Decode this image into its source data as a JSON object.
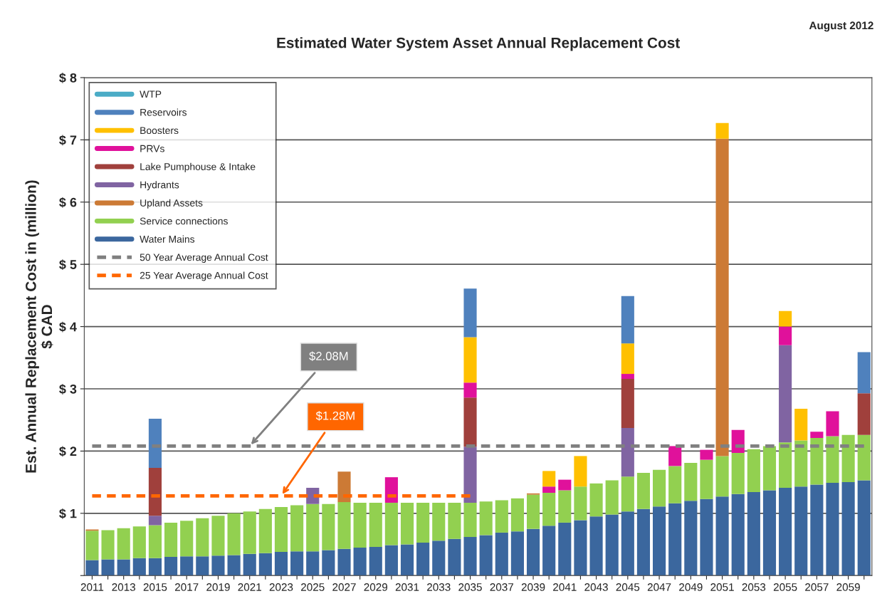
{
  "chart_data": {
    "type": "bar",
    "stacked": true,
    "title": "Estimated Water System Asset Annual Replacement Cost",
    "ylabel": "Est. Annual Replacement Cost in (million)\n$ CAD",
    "categories": [
      "2011",
      null,
      "2013",
      null,
      "2015",
      null,
      "2017",
      null,
      "2019",
      null,
      "2021",
      null,
      "2023",
      null,
      "2025",
      null,
      "2027",
      null,
      "2029",
      null,
      "2031",
      null,
      "2033",
      null,
      "2035",
      null,
      "2037",
      null,
      "2039",
      null,
      "2041",
      null,
      "2043",
      null,
      "2045",
      null,
      "2047",
      null,
      "2049",
      null,
      "2051",
      null,
      "2053",
      null,
      "2055",
      null,
      "2057",
      null,
      "2059",
      null
    ],
    "series": [
      {
        "name": "Water Mains",
        "color": "#3b679e",
        "values": [
          0.25,
          0.26,
          0.26,
          0.28,
          0.28,
          0.3,
          0.31,
          0.31,
          0.32,
          0.33,
          0.35,
          0.36,
          0.38,
          0.39,
          0.39,
          0.41,
          0.43,
          0.45,
          0.46,
          0.49,
          0.5,
          0.53,
          0.56,
          0.59,
          0.62,
          0.65,
          0.69,
          0.71,
          0.75,
          0.8,
          0.85,
          0.89,
          0.95,
          0.98,
          1.03,
          1.07,
          1.11,
          1.16,
          1.2,
          1.23,
          1.27,
          1.31,
          1.34,
          1.37,
          1.41,
          1.43,
          1.46,
          1.49,
          1.5,
          1.53
        ]
      },
      {
        "name": "Service connections",
        "color": "#92d050",
        "values": [
          0.47,
          0.47,
          0.5,
          0.51,
          0.53,
          0.55,
          0.57,
          0.61,
          0.64,
          0.67,
          0.68,
          0.71,
          0.72,
          0.74,
          0.76,
          0.74,
          0.75,
          0.72,
          0.71,
          0.68,
          0.67,
          0.64,
          0.61,
          0.58,
          0.55,
          0.54,
          0.52,
          0.53,
          0.55,
          0.53,
          0.52,
          0.54,
          0.53,
          0.55,
          0.56,
          0.58,
          0.59,
          0.6,
          0.61,
          0.63,
          0.65,
          0.66,
          0.69,
          0.71,
          0.73,
          0.74,
          0.75,
          0.75,
          0.76,
          0.73
        ]
      },
      {
        "name": "Upland Assets",
        "color": "#cc7a35",
        "values": [
          0.02,
          0,
          0,
          0,
          0,
          0,
          0,
          0,
          0,
          0,
          0,
          0,
          0,
          0,
          0,
          0,
          0.49,
          0,
          0,
          0,
          0,
          0,
          0,
          0,
          0,
          0,
          0,
          0,
          0.02,
          0,
          0,
          0,
          0,
          0,
          0,
          0,
          0,
          0,
          0,
          0,
          5.1,
          0,
          0,
          0,
          0,
          0,
          0,
          0,
          0,
          0
        ]
      },
      {
        "name": "Hydrants",
        "color": "#8064a2",
        "values": [
          0,
          0,
          0,
          0,
          0.15,
          0,
          0,
          0,
          0,
          0,
          0,
          0,
          0,
          0,
          0.26,
          0,
          0,
          0,
          0,
          0,
          0,
          0,
          0,
          0,
          0.9,
          0,
          0,
          0,
          0,
          0,
          0,
          0,
          0,
          0,
          0.78,
          0,
          0,
          0,
          0,
          0,
          0,
          0,
          0,
          0,
          1.56,
          0,
          0,
          0,
          0,
          0
        ]
      },
      {
        "name": "Lake Pumphouse & Intake",
        "color": "#a0403c",
        "values": [
          0,
          0,
          0,
          0,
          0.77,
          0,
          0,
          0,
          0,
          0,
          0,
          0,
          0,
          0,
          0,
          0,
          0,
          0,
          0,
          0,
          0,
          0,
          0,
          0,
          0.79,
          0,
          0,
          0,
          0,
          0,
          0,
          0,
          0,
          0,
          0.79,
          0,
          0,
          0,
          0,
          0,
          0,
          0,
          0,
          0,
          0,
          0,
          0,
          0,
          0,
          0.67
        ]
      },
      {
        "name": "PRVs",
        "color": "#e0119b",
        "values": [
          0,
          0,
          0,
          0,
          0,
          0,
          0,
          0,
          0,
          0,
          0,
          0,
          0,
          0,
          0,
          0,
          0,
          0,
          0,
          0.41,
          0,
          0,
          0,
          0,
          0.24,
          0,
          0,
          0,
          0,
          0.1,
          0.17,
          0,
          0,
          0,
          0.08,
          0,
          0,
          0.32,
          0,
          0.16,
          0,
          0.37,
          0,
          0,
          0.3,
          0,
          0.1,
          0.4,
          0,
          0
        ]
      },
      {
        "name": "Boosters",
        "color": "#ffc000",
        "values": [
          0,
          0,
          0,
          0,
          0,
          0,
          0,
          0,
          0,
          0,
          0,
          0,
          0,
          0,
          0,
          0,
          0,
          0,
          0,
          0,
          0,
          0,
          0,
          0,
          0.73,
          0,
          0,
          0,
          0,
          0.25,
          0,
          0.49,
          0,
          0,
          0.49,
          0,
          0,
          0,
          0,
          0,
          0.25,
          0,
          0,
          0,
          0.25,
          0.51,
          0,
          0,
          0,
          0
        ]
      },
      {
        "name": "Reservoirs",
        "color": "#4f81bd",
        "values": [
          0,
          0,
          0,
          0,
          0.79,
          0,
          0,
          0,
          0,
          0,
          0,
          0,
          0,
          0,
          0,
          0,
          0,
          0,
          0,
          0,
          0,
          0,
          0,
          0,
          0.78,
          0,
          0,
          0,
          0,
          0,
          0,
          0,
          0,
          0,
          0.76,
          0,
          0,
          0,
          0,
          0,
          0,
          0,
          0,
          0,
          0,
          0,
          0,
          0,
          0,
          0.66
        ]
      },
      {
        "name": "WTP",
        "color": "#4bacc6",
        "values": [
          0,
          0,
          0,
          0,
          0,
          0,
          0,
          0,
          0,
          0,
          0,
          0,
          0,
          0,
          0,
          0,
          0,
          0,
          0,
          0,
          0,
          0,
          0,
          0,
          0,
          0,
          0,
          0,
          0,
          0,
          0,
          0,
          0,
          0,
          0,
          0,
          0,
          0,
          0,
          0,
          0,
          0,
          0,
          0,
          0,
          0,
          0,
          0,
          0,
          0
        ]
      },
      {
        "name": "50 Year Average Annual Cost",
        "type": "line",
        "line_style": "dashed",
        "color": "#808080",
        "values": [
          2.08,
          2.08,
          2.08,
          2.08,
          2.08,
          2.08,
          2.08,
          2.08,
          2.08,
          2.08,
          2.08,
          2.08,
          2.08,
          2.08,
          2.08,
          2.08,
          2.08,
          2.08,
          2.08,
          2.08,
          2.08,
          2.08,
          2.08,
          2.08,
          2.08,
          2.08,
          2.08,
          2.08,
          2.08,
          2.08,
          2.08,
          2.08,
          2.08,
          2.08,
          2.08,
          2.08,
          2.08,
          2.08,
          2.08,
          2.08,
          2.08,
          2.08,
          2.08,
          2.08,
          2.08,
          2.08,
          2.08,
          2.08,
          2.08,
          2.08
        ]
      },
      {
        "name": "25 Year Average Annual Cost",
        "type": "line",
        "line_style": "dashed",
        "color": "#ff6600",
        "values": [
          1.28,
          1.28,
          1.28,
          1.28,
          1.28,
          1.28,
          1.28,
          1.28,
          1.28,
          1.28,
          1.28,
          1.28,
          1.28,
          1.28,
          1.28,
          1.28,
          1.28,
          1.28,
          1.28,
          1.28,
          1.28,
          1.28,
          1.28,
          1.28,
          1.28,
          null,
          null,
          null,
          null,
          null,
          null,
          null,
          null,
          null,
          null,
          null,
          null,
          null,
          null,
          null,
          null,
          null,
          null,
          null,
          null,
          null,
          null,
          null,
          null,
          null
        ]
      }
    ],
    "ylim": [
      0,
      8
    ],
    "yticks": [
      {
        "value": 0,
        "label": null
      },
      {
        "value": 1,
        "label": "$ 1"
      },
      {
        "value": 2,
        "label": "$ 2"
      },
      {
        "value": 3,
        "label": "$ 3"
      },
      {
        "value": 4,
        "label": "$ 4"
      },
      {
        "value": 5,
        "label": "$ 5"
      },
      {
        "value": 6,
        "label": "$ 6"
      },
      {
        "value": 7,
        "label": "$ 7"
      },
      {
        "value": 8,
        "label": "$ 8"
      }
    ],
    "grid": "y",
    "legend": "top left",
    "annotations": [
      "August 2012",
      {
        "text": "$2.08M",
        "x": "2021",
        "y": 2.08
      },
      {
        "text": "$1.28M",
        "x": "2023",
        "y": 1.28
      }
    ]
  }
}
